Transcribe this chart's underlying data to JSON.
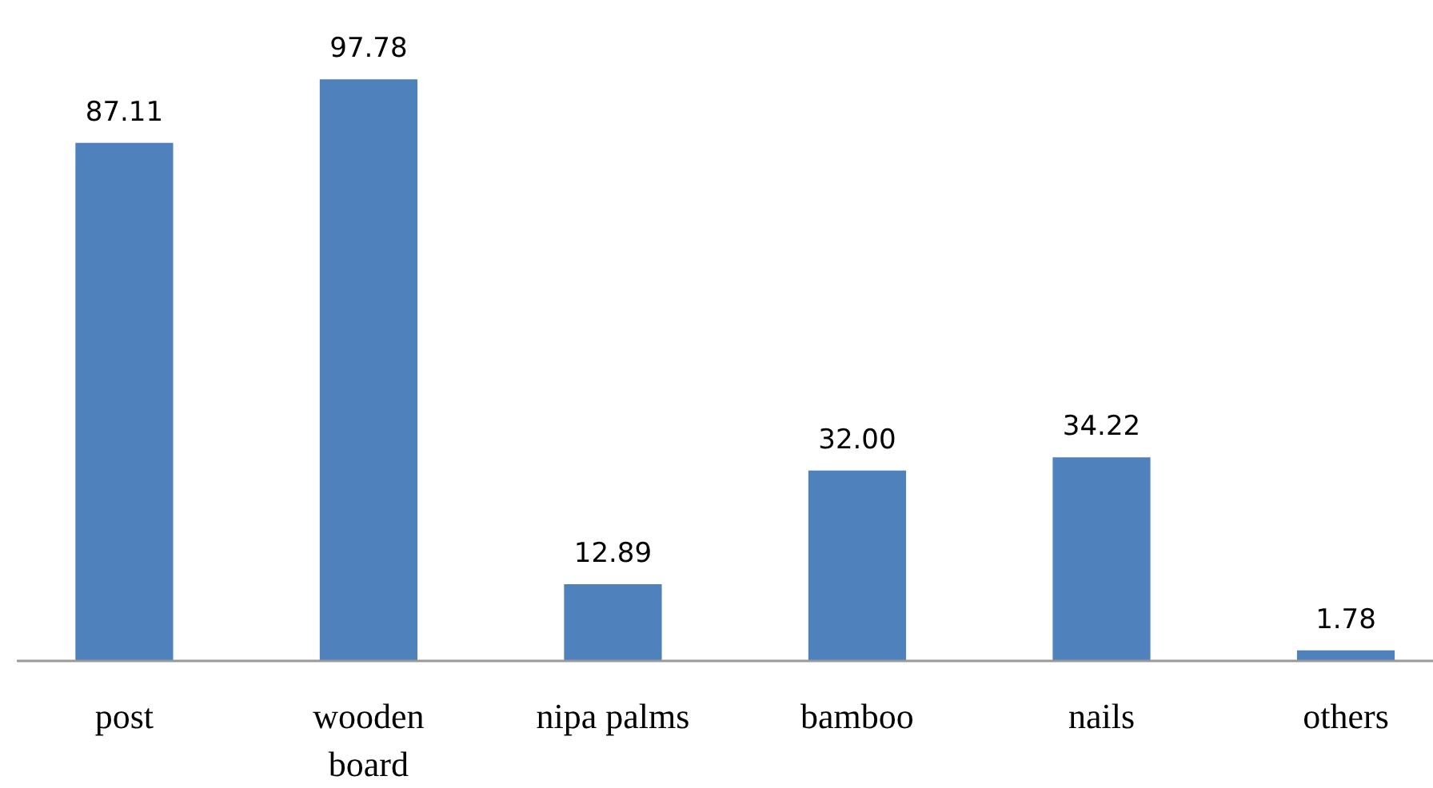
{
  "chart_data": {
    "type": "bar",
    "categories": [
      "post",
      "wooden\nboard",
      "nipa palms",
      "bamboo",
      "nails",
      "others"
    ],
    "values": [
      87.11,
      97.78,
      12.89,
      32.0,
      34.22,
      1.78
    ],
    "value_labels": [
      "87.11",
      "97.78",
      "12.89",
      "32.00",
      "34.22",
      "1.78"
    ],
    "color": "#4f81bd"
  }
}
